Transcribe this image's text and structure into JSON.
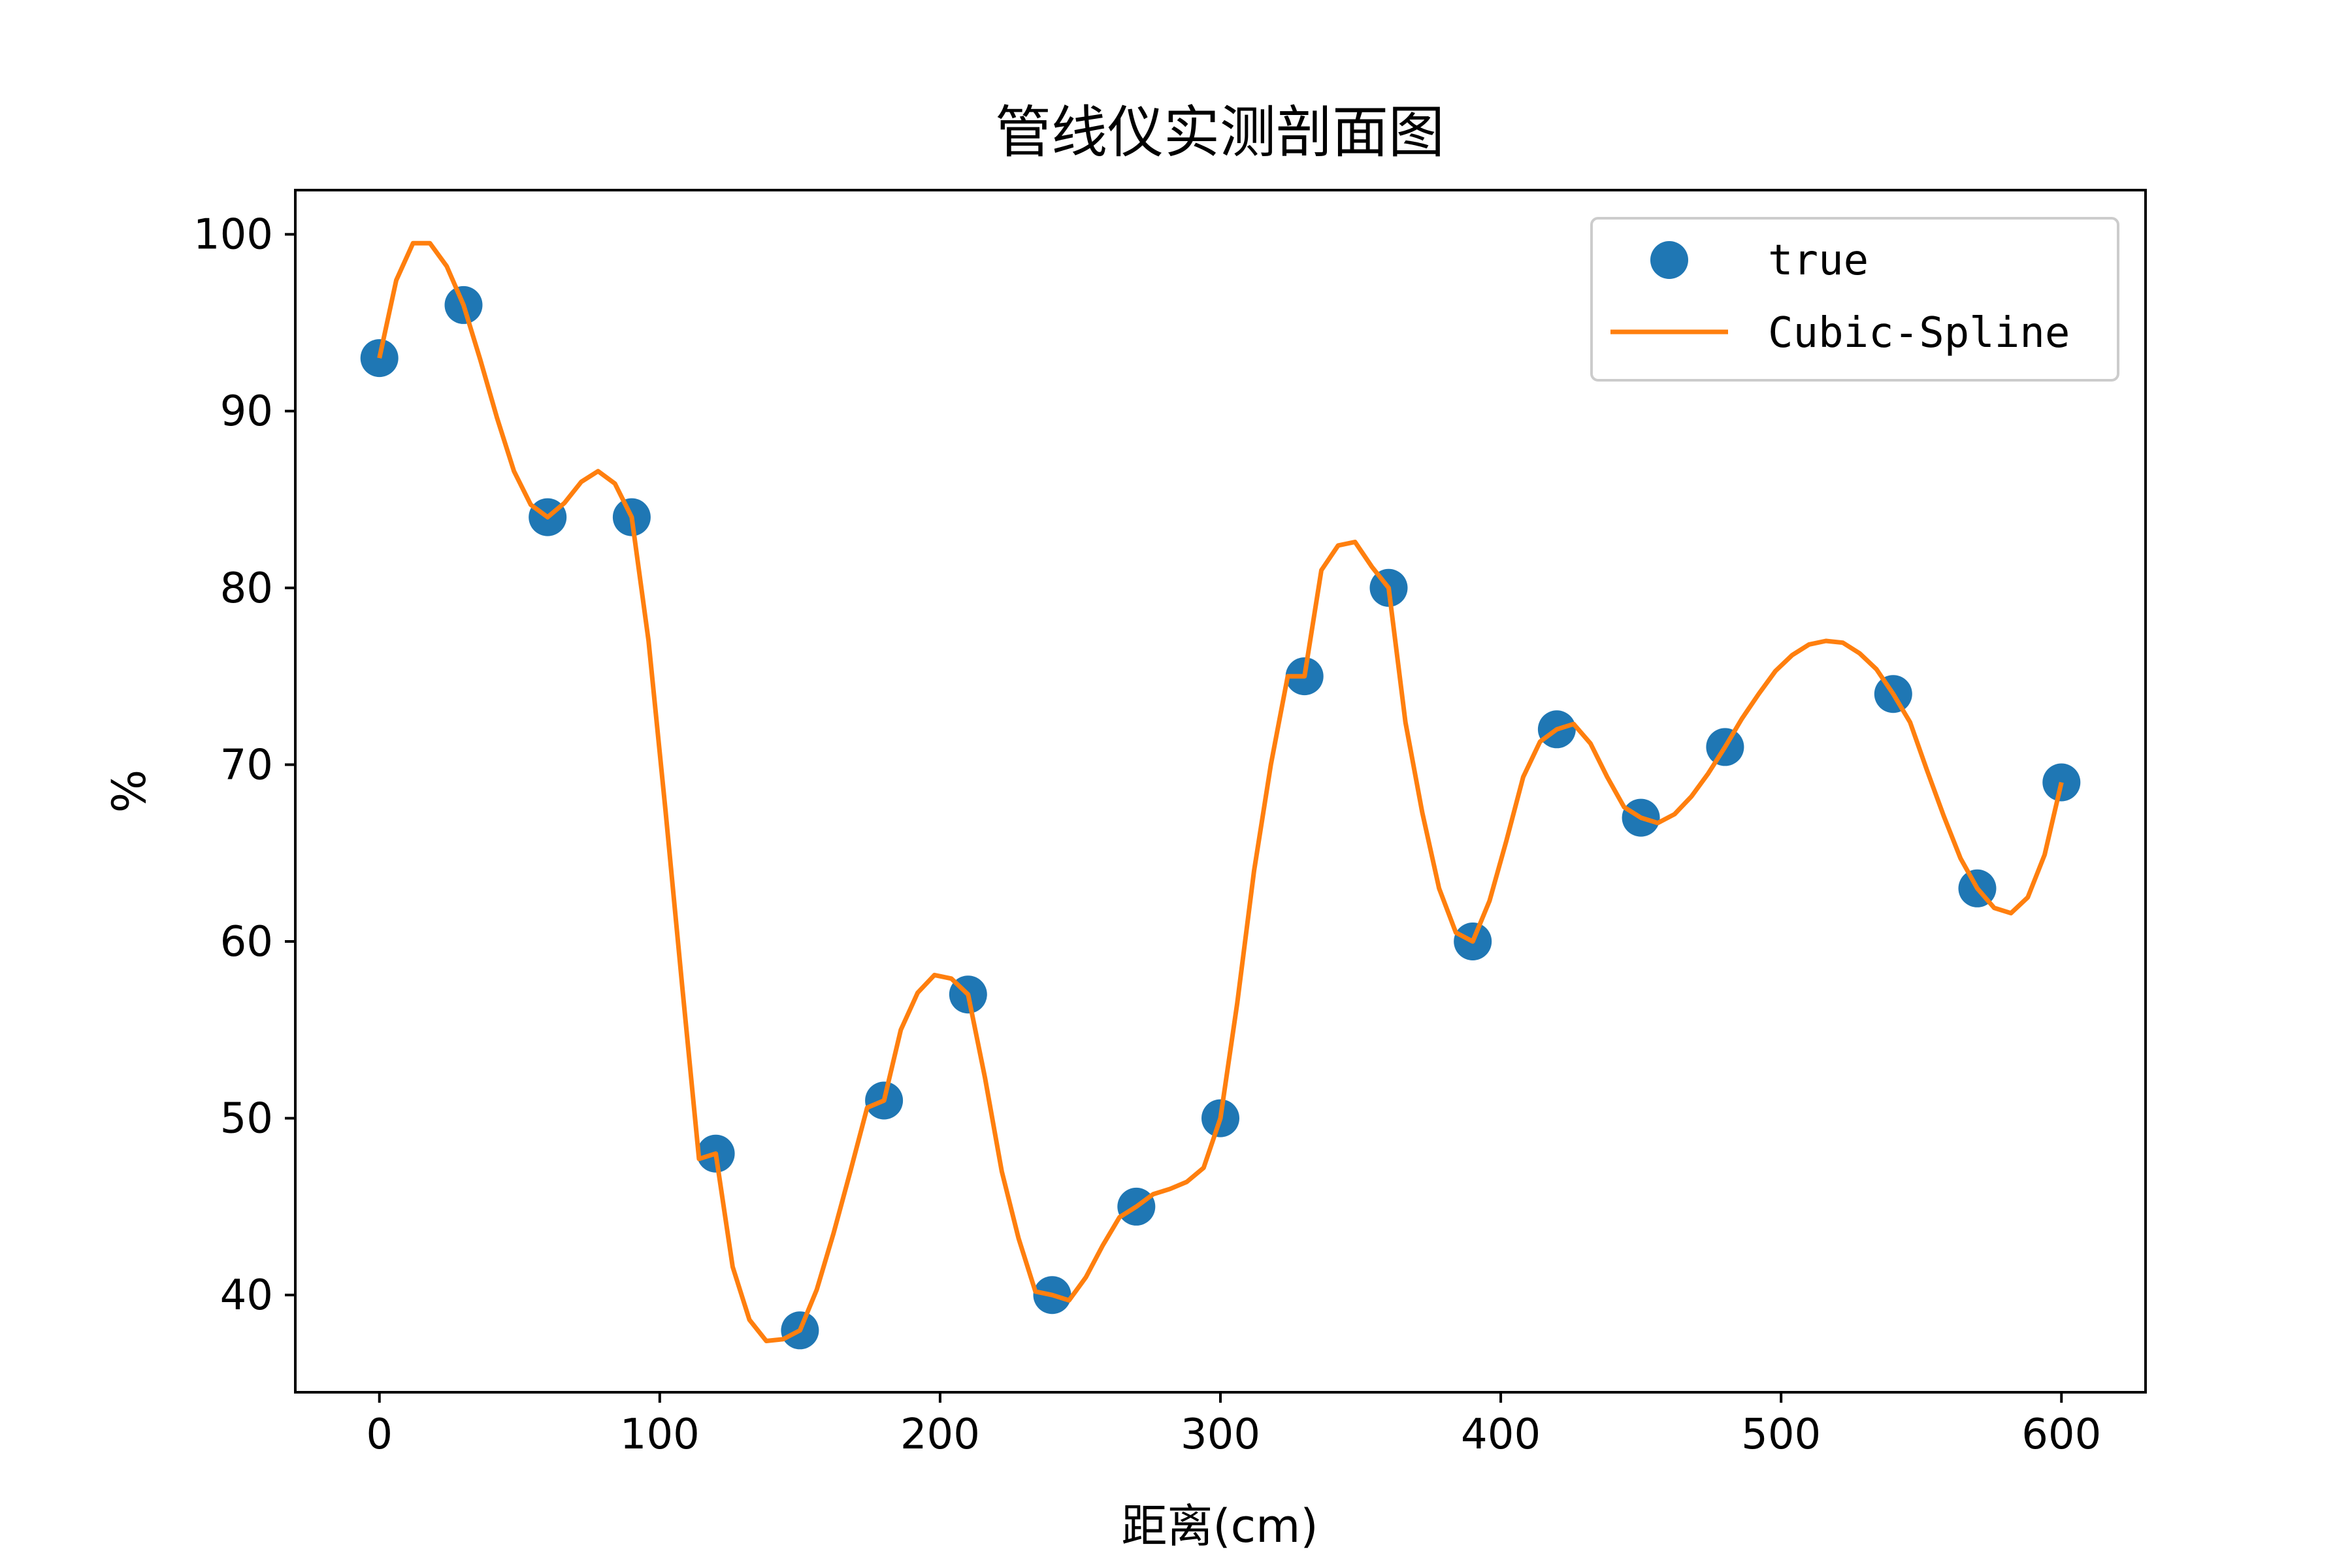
{
  "chart_data": {
    "type": "line",
    "title": "管线仪实测剖面图",
    "xlabel": "距离(cm)",
    "ylabel": "%",
    "xlim": [
      -30,
      630
    ],
    "ylim": [
      34.5,
      102.5
    ],
    "xticks": [
      0,
      100,
      200,
      300,
      400,
      500,
      600
    ],
    "yticks": [
      40,
      50,
      60,
      70,
      80,
      90,
      100
    ],
    "grid": false,
    "legend_position": "upper right",
    "series": [
      {
        "name": "true",
        "kind": "scatter",
        "color": "#1f77b4",
        "x": [
          0,
          30,
          60,
          90,
          120,
          150,
          180,
          210,
          240,
          270,
          300,
          330,
          360,
          390,
          420,
          450,
          480,
          540,
          570,
          600
        ],
        "y": [
          93,
          96,
          84,
          84,
          48,
          38,
          51,
          57,
          40,
          45,
          50,
          75,
          80,
          60,
          72,
          67,
          71,
          74,
          63,
          69
        ]
      },
      {
        "name": "Cubic-Spline",
        "kind": "line",
        "color": "#ff7f0e",
        "x": [
          0,
          6,
          12,
          18,
          24,
          30,
          36,
          42,
          48,
          54,
          60,
          66,
          72,
          78,
          84,
          90,
          96,
          102,
          108,
          114,
          120,
          126,
          132,
          138,
          144,
          150,
          156,
          162,
          168,
          174,
          180,
          186,
          192,
          198,
          204,
          210,
          216,
          222,
          228,
          234,
          240,
          246,
          252,
          258,
          264,
          270,
          276,
          282,
          288,
          294,
          300,
          306,
          312,
          318,
          324,
          330,
          336,
          342,
          348,
          354,
          360,
          366,
          372,
          378,
          384,
          390,
          396,
          402,
          408,
          414,
          420,
          426,
          432,
          438,
          444,
          450,
          456,
          462,
          468,
          474,
          480,
          486,
          492,
          498,
          504,
          510,
          516,
          522,
          528,
          534,
          540,
          546,
          552,
          558,
          564,
          570,
          576,
          582,
          588,
          594,
          600
        ],
        "y": [
          93.0,
          97.4,
          99.5,
          99.5,
          98.2,
          96.0,
          92.9,
          89.6,
          86.6,
          84.7,
          84.0,
          84.8,
          86.0,
          86.6,
          85.9,
          84.0,
          77.0,
          67.5,
          57.5,
          47.7,
          48.0,
          41.6,
          38.6,
          37.4,
          37.5,
          38.0,
          40.3,
          43.5,
          47.0,
          50.6,
          51.0,
          55.0,
          57.1,
          58.1,
          57.9,
          57.0,
          52.3,
          47.0,
          43.2,
          40.2,
          40.0,
          39.7,
          41.0,
          42.8,
          44.4,
          45.0,
          45.7,
          46.0,
          46.4,
          47.2,
          50.0,
          56.5,
          64.0,
          70.0,
          75.0,
          75.0,
          81.0,
          82.4,
          82.6,
          81.2,
          80.0,
          72.4,
          67.3,
          63.0,
          60.5,
          60.0,
          62.3,
          65.7,
          69.3,
          71.3,
          72.0,
          72.3,
          71.2,
          69.3,
          67.6,
          67.0,
          66.7,
          67.2,
          68.2,
          69.5,
          71.0,
          72.6,
          74.0,
          75.3,
          76.2,
          76.8,
          77.0,
          76.9,
          76.3,
          75.4,
          74.0,
          72.4,
          69.7,
          67.1,
          64.7,
          63.0,
          61.9,
          61.6,
          62.5,
          64.9,
          69.0
        ]
      }
    ]
  }
}
